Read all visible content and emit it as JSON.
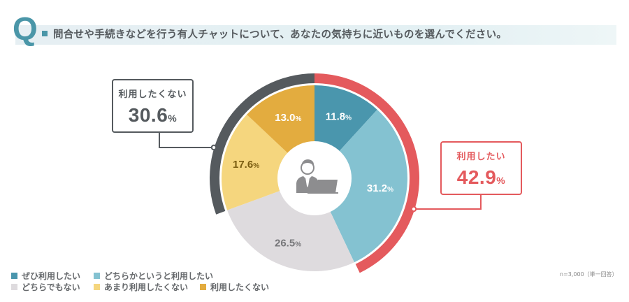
{
  "header": {
    "q_mark": "Q",
    "question": "問合せや手続きなどを行う有人チャットについて、あなたの気持ちに近いものを選んでください。"
  },
  "callouts": {
    "negative": {
      "label": "利用したくない",
      "value": "30.6",
      "unit": "%",
      "color": "#555a5e"
    },
    "positive": {
      "label": "利用したい",
      "value": "42.9",
      "unit": "%",
      "color": "#e45a5d"
    }
  },
  "legend": [
    {
      "label": "ぜひ利用したい",
      "color": "#4a96ad"
    },
    {
      "label": "どちらかというと利用したい",
      "color": "#84c2d1"
    },
    {
      "label": "どちらでもない",
      "color": "#dedbde"
    },
    {
      "label": "あまり利用したくない",
      "color": "#f5d67e"
    },
    {
      "label": "利用したくない",
      "color": "#e3ac3f"
    }
  ],
  "note": "n=3,000（単一回答）",
  "center_icon": "person-at-laptop-icon",
  "chart_data": {
    "type": "pie",
    "subtype": "donut",
    "title": "問合せや手続きなどを行う有人チャットについて、あなたの気持ちに近いものを選んでください。",
    "categories": [
      "ぜひ利用したい",
      "どちらかというと利用したい",
      "どちらでもない",
      "あまり利用したくない",
      "利用したくない"
    ],
    "values": [
      11.8,
      31.2,
      26.5,
      17.6,
      13.0
    ],
    "labels": [
      "11.8%",
      "31.2%",
      "26.5%",
      "17.6%",
      "13.0%"
    ],
    "colors": [
      "#4a96ad",
      "#84c2d1",
      "#dedbde",
      "#f5d67e",
      "#e3ac3f"
    ],
    "label_colors": [
      "#ffffff",
      "#ffffff",
      "#77777a",
      "#7a5d10",
      "#ffffff"
    ],
    "start_angle": "top, clockwise",
    "outer_arcs": [
      {
        "name": "利用したい",
        "value": 42.9,
        "color": "#e45a5d",
        "covers": [
          "ぜひ利用したい",
          "どちらかというと利用したい"
        ]
      },
      {
        "name": "利用したくない",
        "value": 30.6,
        "color": "#555a5e",
        "covers": [
          "あまり利用したくない",
          "利用したくない"
        ]
      }
    ],
    "legend_position": "bottom-left",
    "sample_note": "n=3,000（単一回答）"
  }
}
